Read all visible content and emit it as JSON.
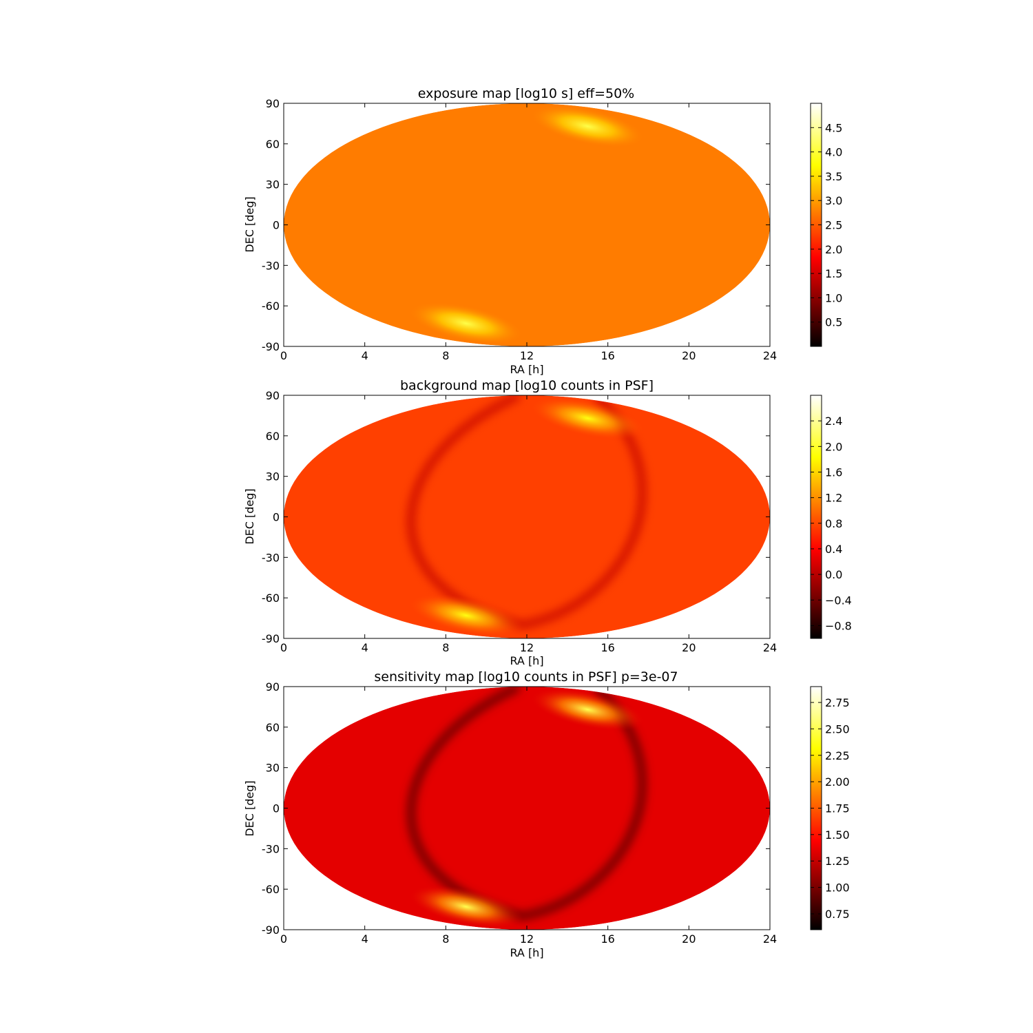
{
  "chart_data": [
    {
      "type": "heatmap",
      "title": "exposure map [log10 s] eff=50%",
      "xlabel": "RA [h]",
      "ylabel": "DEC [deg]",
      "xlim": [
        0,
        24
      ],
      "ylim": [
        -90,
        90
      ],
      "xticks": [
        0,
        4,
        8,
        12,
        16,
        20,
        24
      ],
      "yticks": [
        90,
        60,
        30,
        0,
        -30,
        -60,
        -90
      ],
      "projection": "elliptical all-sky",
      "colormap": "hot",
      "colorbar_range": [
        0.0,
        5.0
      ],
      "colorbar_ticks": [
        "4.5",
        "4.0",
        "3.5",
        "3.0",
        "2.5",
        "2.0",
        "1.5",
        "1.0",
        "0.5"
      ],
      "colorbar_tick_values": [
        4.5,
        4.0,
        3.5,
        3.0,
        2.5,
        2.0,
        1.5,
        1.0,
        0.5
      ],
      "typical_value": 2.75,
      "hotspots": [
        {
          "ra": 15.0,
          "dec": 73,
          "value": 4.1
        },
        {
          "ra": 9.0,
          "dec": -73,
          "value": 4.1
        }
      ]
    },
    {
      "type": "heatmap",
      "title": "background map [log10 counts in PSF]",
      "xlabel": "RA [h]",
      "ylabel": "DEC [deg]",
      "xlim": [
        0,
        24
      ],
      "ylim": [
        -90,
        90
      ],
      "xticks": [
        0,
        4,
        8,
        12,
        16,
        20,
        24
      ],
      "yticks": [
        90,
        60,
        30,
        0,
        -30,
        -60,
        -90
      ],
      "projection": "elliptical all-sky",
      "colormap": "hot",
      "colorbar_range": [
        -1.0,
        2.8
      ],
      "colorbar_ticks": [
        "2.4",
        "2.0",
        "1.6",
        "1.2",
        "0.8",
        "0.4",
        "0.0",
        "−0.4",
        "−0.8"
      ],
      "colorbar_tick_values": [
        2.4,
        2.0,
        1.6,
        1.2,
        0.8,
        0.4,
        0.0,
        -0.4,
        -0.8
      ],
      "typical_value": 0.75,
      "hotspots": [
        {
          "ra": 15.0,
          "dec": 73,
          "value": 1.9
        },
        {
          "ra": 9.0,
          "dec": -73,
          "value": 1.9
        }
      ],
      "dark_band_value": 0.05
    },
    {
      "type": "heatmap",
      "title": "sensitivity map [log10 counts in PSF] p=3e-07",
      "xlabel": "RA [h]",
      "ylabel": "DEC [deg]",
      "xlim": [
        0,
        24
      ],
      "ylim": [
        -90,
        90
      ],
      "xticks": [
        0,
        4,
        8,
        12,
        16,
        20,
        24
      ],
      "yticks": [
        90,
        60,
        30,
        0,
        -30,
        -60,
        -90
      ],
      "projection": "elliptical all-sky",
      "colormap": "hot",
      "colorbar_range": [
        0.6,
        2.9
      ],
      "colorbar_ticks": [
        "2.75",
        "2.50",
        "2.25",
        "2.00",
        "1.75",
        "1.50",
        "1.25",
        "1.00",
        "0.75"
      ],
      "colorbar_tick_values": [
        2.75,
        2.5,
        2.25,
        2.0,
        1.75,
        1.5,
        1.25,
        1.0,
        0.75
      ],
      "typical_value": 1.35,
      "hotspots": [
        {
          "ra": 15.0,
          "dec": 73,
          "value": 2.5
        },
        {
          "ra": 9.0,
          "dec": -73,
          "value": 2.5
        }
      ],
      "dark_band_value": 0.85
    }
  ]
}
